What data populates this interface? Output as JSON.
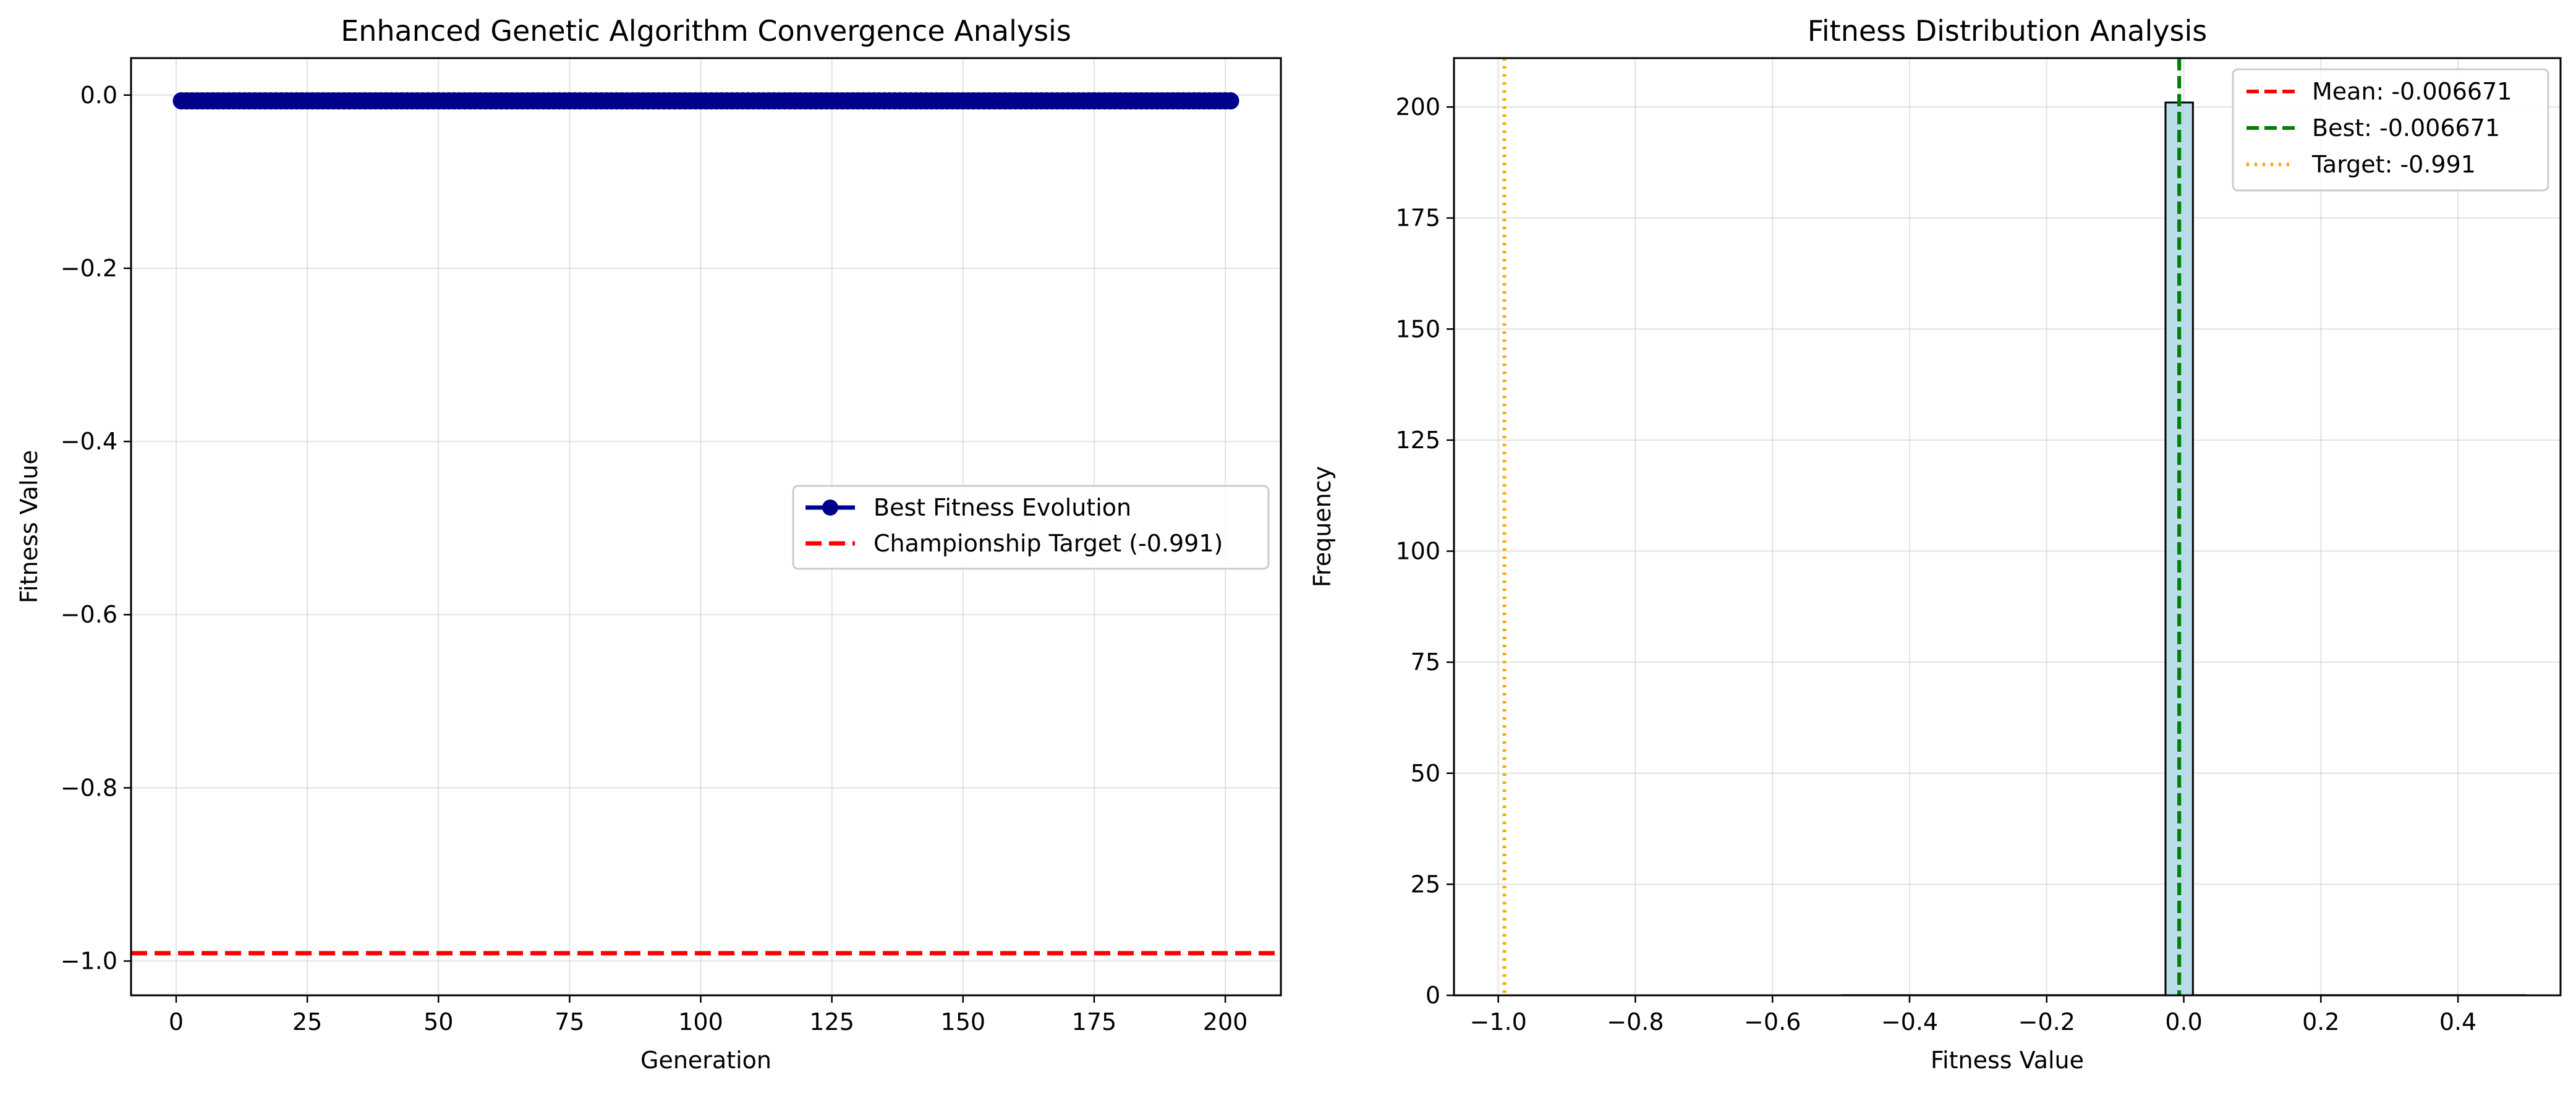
{
  "chart_data": [
    {
      "type": "line",
      "title": "Enhanced Genetic Algorithm Convergence Analysis",
      "xlabel": "Generation",
      "ylabel": "Fitness Value",
      "xlim": [
        -8.6,
        210.6
      ],
      "ylim": [
        -1.0396,
        0.0427
      ],
      "xticks": [
        0,
        25,
        50,
        75,
        100,
        125,
        150,
        175,
        200
      ],
      "xtick_labels": [
        "0",
        "25",
        "50",
        "75",
        "100",
        "125",
        "150",
        "175",
        "200"
      ],
      "yticks": [
        0.0,
        -0.2,
        -0.4,
        -0.6,
        -0.8,
        -1.0
      ],
      "ytick_labels": [
        "0.0",
        "−0.2",
        "−0.4",
        "−0.6",
        "−0.8",
        "−1.0"
      ],
      "grid": true,
      "legend_position": "center-right",
      "series": [
        {
          "name": "Best Fitness Evolution",
          "style": "line-with-markers",
          "color": "#00008b",
          "x_start": 1,
          "x_end": 201,
          "x_step": 1,
          "y_constant": -0.006671
        },
        {
          "name": "Championship Target (-0.991)",
          "style": "dashed-horizontal",
          "color": "#ff0000",
          "y": -0.991
        }
      ]
    },
    {
      "type": "bar",
      "subtype": "histogram",
      "title": "Fitness Distribution Analysis",
      "xlabel": "Fitness Value",
      "ylabel": "Frequency",
      "xlim": [
        -1.0646,
        0.5496
      ],
      "ylim": [
        0,
        211
      ],
      "xticks": [
        -1.0,
        -0.8,
        -0.6,
        -0.4,
        -0.2,
        0.0,
        0.2,
        0.4
      ],
      "xtick_labels": [
        "−1.0",
        "−0.8",
        "−0.6",
        "−0.4",
        "−0.2",
        "0.0",
        "0.2",
        "0.4"
      ],
      "yticks": [
        0,
        25,
        50,
        75,
        100,
        125,
        150,
        175,
        200
      ],
      "ytick_labels": [
        "0",
        "25",
        "50",
        "75",
        "100",
        "125",
        "150",
        "175",
        "200"
      ],
      "grid": true,
      "legend_position": "top-right",
      "bar_color": "#add8e6",
      "bins": [
        {
          "x0": -0.026671,
          "x1": 0.013329,
          "count": 201
        }
      ],
      "empty_range": [
        -0.5,
        0.5
      ],
      "lines": [
        {
          "name": "Mean: -0.006671",
          "x": -0.006671,
          "style": "dashed",
          "color": "#ff0000"
        },
        {
          "name": "Best: -0.006671",
          "x": -0.006671,
          "style": "dashed",
          "color": "#008000"
        },
        {
          "name": "Target: -0.991",
          "x": -0.991,
          "style": "dotted",
          "color": "#ffa500"
        }
      ]
    }
  ]
}
